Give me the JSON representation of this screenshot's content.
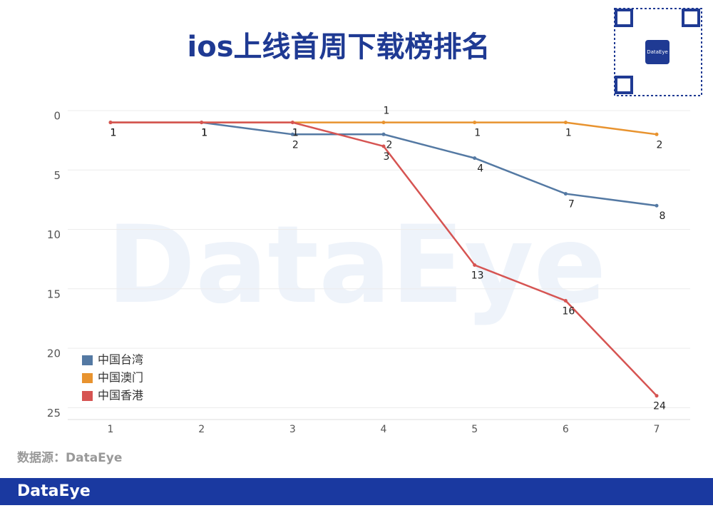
{
  "title": "ios上线首周下载榜排名",
  "source": "数据源：DataEye",
  "footer_brand": "DataEye",
  "watermark": "DataEye",
  "qr_label": "DataEye",
  "chart_data": {
    "type": "line",
    "x": [
      1,
      2,
      3,
      4,
      5,
      6,
      7
    ],
    "xlim": [
      1,
      7
    ],
    "xticks": [
      1,
      2,
      3,
      4,
      5,
      6,
      7
    ],
    "ylim": [
      0,
      26
    ],
    "yticks": [
      0,
      5,
      10,
      15,
      20,
      25
    ],
    "y_inverted": true,
    "grid": true,
    "legend": "lower left",
    "series": [
      {
        "name": "中国台湾",
        "color": "#5479a3",
        "values": [
          1,
          1,
          2,
          2,
          4,
          7,
          8
        ]
      },
      {
        "name": "中国澳门",
        "color": "#e8932f",
        "values": [
          1,
          1,
          1,
          1,
          1,
          1,
          2
        ]
      },
      {
        "name": "中国香港",
        "color": "#d65452",
        "values": [
          1,
          1,
          1,
          3,
          13,
          16,
          24
        ]
      }
    ]
  }
}
